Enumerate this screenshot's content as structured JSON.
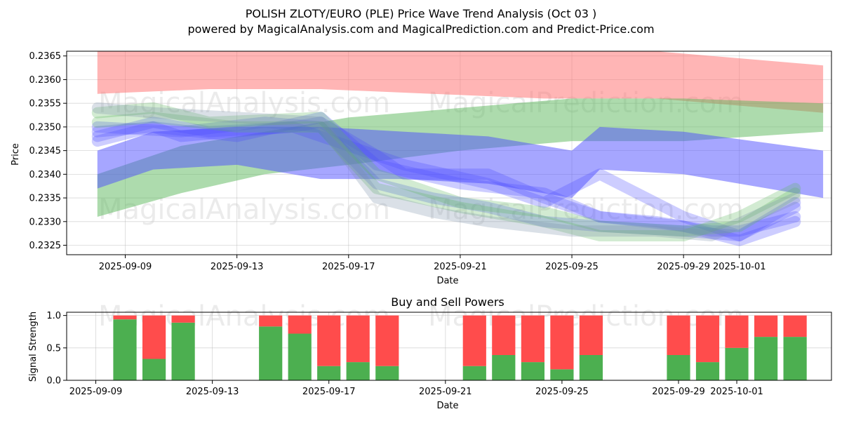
{
  "title_line1": "POLISH ZLOTY/EURO (PLE) Price Wave Trend Analysis (Oct 03 )",
  "title_line2": "powered by MagicalAnalysis.com and MagicalPrediction.com and Predict-Price.com",
  "watermarks": [
    "MagicalAnalysis.com",
    "MagicalPrediction.com"
  ],
  "colors": {
    "red_band": "#ff6b6b",
    "green_band": "#5cb85c",
    "blue_band": "#4d4dff",
    "buy": "#4caf50",
    "sell": "#ff4c4c"
  },
  "chart_data": [
    {
      "type": "area",
      "xlabel": "Date",
      "ylabel": "Price",
      "ylim": [
        0.2323,
        0.2366
      ],
      "x_tick_labels": [
        "2025-09-09",
        "2025-09-13",
        "2025-09-17",
        "2025-09-21",
        "2025-09-25",
        "2025-09-29",
        "2025-10-01"
      ],
      "y_tick_labels": [
        "0.2325",
        "0.2330",
        "0.2335",
        "0.2340",
        "0.2345",
        "0.2350",
        "0.2355",
        "0.2360",
        "0.2365"
      ],
      "grid": true,
      "bands": [
        {
          "color": "red",
          "x": [
            "2025-09-08",
            "2025-09-12",
            "2025-09-16",
            "2025-09-20",
            "2025-09-24",
            "2025-09-28",
            "2025-10-04"
          ],
          "upper": [
            0.2366,
            0.2366,
            0.2366,
            0.2366,
            0.2366,
            0.2366,
            0.2363
          ],
          "lower": [
            0.2357,
            0.2358,
            0.2358,
            0.2357,
            0.2356,
            0.2356,
            0.2353
          ]
        },
        {
          "color": "green",
          "x": [
            "2025-09-08",
            "2025-09-11",
            "2025-09-14",
            "2025-09-17",
            "2025-09-21",
            "2025-09-25",
            "2025-09-29",
            "2025-10-04"
          ],
          "upper": [
            0.234,
            0.2346,
            0.2349,
            0.2352,
            0.2354,
            0.2356,
            0.2356,
            0.2355
          ],
          "lower": [
            0.2331,
            0.2336,
            0.234,
            0.2342,
            0.2345,
            0.2347,
            0.2347,
            0.2349
          ]
        },
        {
          "color": "blue",
          "x": [
            "2025-09-08",
            "2025-09-10",
            "2025-09-13",
            "2025-09-16",
            "2025-09-19",
            "2025-09-22",
            "2025-09-25",
            "2025-09-26",
            "2025-09-29",
            "2025-10-04"
          ],
          "upper": [
            0.2345,
            0.2349,
            0.235,
            0.235,
            0.2349,
            0.2348,
            0.2345,
            0.235,
            0.2349,
            0.2345
          ],
          "lower": [
            0.2337,
            0.2341,
            0.2342,
            0.2339,
            0.2339,
            0.2338,
            0.2335,
            0.2341,
            0.234,
            0.2335
          ]
        }
      ],
      "wave_lines": [
        {
          "color": "blue",
          "x": [
            "2025-09-08",
            "2025-09-10",
            "2025-09-11",
            "2025-09-13",
            "2025-09-15",
            "2025-09-16",
            "2025-09-18",
            "2025-09-19",
            "2025-09-22",
            "2025-09-24",
            "2025-09-26",
            "2025-09-28",
            "2025-09-30",
            "2025-10-01",
            "2025-10-03"
          ],
          "y": [
            0.2349,
            0.235,
            0.2348,
            0.2349,
            0.235,
            0.2351,
            0.2344,
            0.234,
            0.234,
            0.2335,
            0.2331,
            0.233,
            0.2328,
            0.2328,
            0.2331
          ]
        },
        {
          "color": "blue",
          "x": [
            "2025-09-08",
            "2025-09-10",
            "2025-09-12",
            "2025-09-15",
            "2025-09-17",
            "2025-09-19",
            "2025-09-22",
            "2025-09-24",
            "2025-09-26",
            "2025-09-29",
            "2025-10-01",
            "2025-10-03"
          ],
          "y": [
            0.2348,
            0.2351,
            0.2349,
            0.235,
            0.2346,
            0.2342,
            0.2338,
            0.2334,
            0.234,
            0.2331,
            0.2327,
            0.2334
          ]
        },
        {
          "color": "blue",
          "x": [
            "2025-09-08",
            "2025-09-10",
            "2025-09-13",
            "2025-09-16",
            "2025-09-18",
            "2025-09-21",
            "2025-09-24",
            "2025-09-26",
            "2025-09-29",
            "2025-10-01",
            "2025-10-03"
          ],
          "y": [
            0.2347,
            0.235,
            0.2348,
            0.2352,
            0.2342,
            0.2338,
            0.2336,
            0.2331,
            0.2329,
            0.2326,
            0.233
          ]
        },
        {
          "color": "blue",
          "x": [
            "2025-09-08",
            "2025-09-11",
            "2025-09-14",
            "2025-09-16",
            "2025-09-18",
            "2025-09-20",
            "2025-09-22",
            "2025-09-24",
            "2025-09-26",
            "2025-09-29",
            "2025-10-01",
            "2025-10-03"
          ],
          "y": [
            0.235,
            0.2349,
            0.2351,
            0.235,
            0.2338,
            0.2335,
            0.2333,
            0.233,
            0.2329,
            0.2328,
            0.2327,
            0.2333
          ]
        },
        {
          "color": "green",
          "x": [
            "2025-09-08",
            "2025-09-10",
            "2025-09-12",
            "2025-09-16",
            "2025-09-18",
            "2025-09-21",
            "2025-09-24",
            "2025-09-26",
            "2025-09-29",
            "2025-10-01",
            "2025-10-03"
          ],
          "y": [
            0.2353,
            0.2354,
            0.2351,
            0.2352,
            0.234,
            0.2334,
            0.2332,
            0.2329,
            0.2328,
            0.2329,
            0.2336
          ]
        },
        {
          "color": "green",
          "x": [
            "2025-09-08",
            "2025-09-10",
            "2025-09-13",
            "2025-09-16",
            "2025-09-18",
            "2025-09-21",
            "2025-09-24",
            "2025-09-26",
            "2025-09-29",
            "2025-10-01",
            "2025-10-03"
          ],
          "y": [
            0.2351,
            0.2352,
            0.235,
            0.235,
            0.2337,
            0.2333,
            0.233,
            0.2327,
            0.2327,
            0.2331,
            0.2337
          ]
        },
        {
          "color": "slate",
          "x": [
            "2025-09-08",
            "2025-09-10",
            "2025-09-13",
            "2025-09-16",
            "2025-09-18",
            "2025-09-20",
            "2025-09-22",
            "2025-09-25",
            "2025-09-28",
            "2025-09-30",
            "2025-10-03"
          ],
          "y": [
            0.2354,
            0.2353,
            0.2352,
            0.2351,
            0.2335,
            0.2332,
            0.233,
            0.2328,
            0.2328,
            0.2327,
            0.2335
          ]
        }
      ]
    },
    {
      "type": "bar",
      "title": "Buy and Sell Powers",
      "xlabel": "Date",
      "ylabel": "Signal Strength",
      "ylim": [
        0,
        1.05
      ],
      "x_tick_labels": [
        "2025-09-09",
        "2025-09-13",
        "2025-09-17",
        "2025-09-21",
        "2025-09-25",
        "2025-09-29",
        "2025-10-01"
      ],
      "y_tick_labels": [
        "0.0",
        "0.5",
        "1.0"
      ],
      "grid": true,
      "categories": [
        "2025-09-10",
        "2025-09-11",
        "2025-09-12",
        "2025-09-15",
        "2025-09-16",
        "2025-09-17",
        "2025-09-18",
        "2025-09-19",
        "2025-09-22",
        "2025-09-23",
        "2025-09-24",
        "2025-09-25",
        "2025-09-26",
        "2025-09-29",
        "2025-09-30",
        "2025-10-01",
        "2025-10-02",
        "2025-10-03"
      ],
      "series": [
        {
          "values": [
            0.94,
            0.33,
            0.89,
            0.83,
            0.72,
            0.22,
            0.28,
            0.22,
            0.22,
            0.39,
            0.28,
            0.17,
            0.39,
            0.39,
            0.28,
            0.5,
            0.67,
            0.67
          ]
        },
        {
          "values": [
            0.06,
            0.67,
            0.11,
            0.17,
            0.28,
            0.78,
            0.72,
            0.78,
            0.78,
            0.61,
            0.72,
            0.83,
            0.61,
            0.61,
            0.72,
            0.5,
            0.33,
            0.33
          ]
        }
      ]
    }
  ]
}
